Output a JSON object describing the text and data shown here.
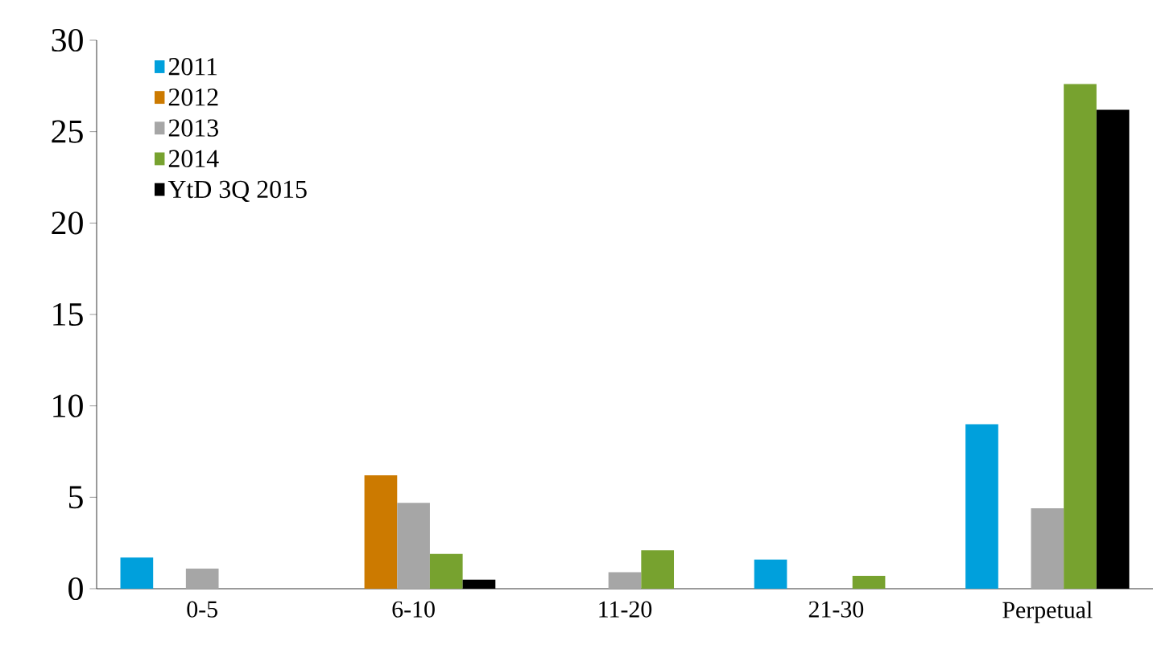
{
  "chart_data": {
    "type": "bar",
    "categories": [
      "0-5",
      "6-10",
      "11-20",
      "21-30",
      "Perpetual"
    ],
    "series": [
      {
        "name": "2011",
        "color": "#00a0dc",
        "values": [
          1.7,
          null,
          null,
          1.6,
          9.0
        ]
      },
      {
        "name": "2012",
        "color": "#cc7a00",
        "values": [
          null,
          6.2,
          null,
          null,
          null
        ]
      },
      {
        "name": "2013",
        "color": "#a6a6a6",
        "values": [
          1.1,
          4.7,
          0.9,
          null,
          4.4
        ]
      },
      {
        "name": "2014",
        "color": "#77a22f",
        "values": [
          null,
          1.9,
          2.1,
          0.7,
          27.6
        ]
      },
      {
        "name": "YtD 3Q 2015",
        "color": "#000000",
        "values": [
          null,
          0.5,
          null,
          null,
          26.2
        ]
      }
    ],
    "ylim": [
      0,
      30
    ],
    "yticks": [
      0,
      5,
      10,
      15,
      20,
      25,
      30
    ],
    "grid": false,
    "legend": "top left"
  }
}
